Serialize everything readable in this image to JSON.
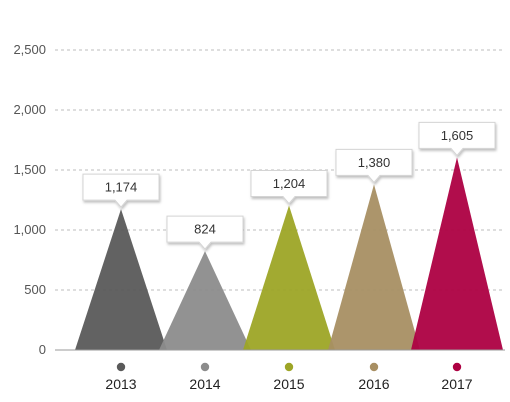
{
  "chart_data": {
    "type": "bar",
    "categories": [
      "2013",
      "2014",
      "2015",
      "2016",
      "2017"
    ],
    "values": [
      1174,
      824,
      1204,
      1380,
      1605
    ],
    "value_labels": [
      "1,174",
      "824",
      "1,204",
      "1,380",
      "1,605"
    ],
    "yticks": [
      {
        "value": 0,
        "label": "0"
      },
      {
        "value": 500,
        "label": "500"
      },
      {
        "value": 1000,
        "label": "1,000"
      },
      {
        "value": 1500,
        "label": "1,500"
      },
      {
        "value": 2000,
        "label": "2,000"
      },
      {
        "value": 2500,
        "label": "2,500"
      }
    ],
    "ylim": [
      0,
      2500
    ],
    "grid": true,
    "title": "",
    "xlabel": "",
    "ylabel": "",
    "colors": [
      "#5a5a5a",
      "#8c8c8c",
      "#9da526",
      "#a88f63",
      "#ad0042"
    ],
    "shape": "triangle"
  }
}
